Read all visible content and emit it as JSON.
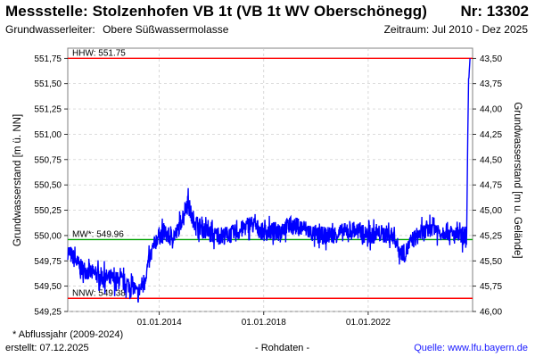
{
  "header": {
    "title": "Messstelle: Stolzenhofen VB 1t (VB 1t WV Oberschönegg)",
    "number": "Nr: 13302",
    "aquifer_label": "Grundwasserleiter:",
    "aquifer_value": "Obere Süßwassermolasse",
    "period": "Zeitraum: Jul 2010 - Dez 2025"
  },
  "footer": {
    "footnote": "* Abflussjahr (2009-2024)",
    "created": "erstellt:  07.12.2025",
    "datatype": "- Rohdaten -",
    "source": "Quelle:  www.lfu.bayern.de"
  },
  "colors": {
    "series": "#0000ff",
    "extreme": "#ff0000",
    "mean": "#00a000",
    "grid": "#c8c8c8"
  },
  "chart_data": {
    "type": "line",
    "ylabel_left": "Grundwasserstand [m ü. NN]",
    "ylabel_right": "Grundwasserstand [m u. Gelände]",
    "ylim_left": [
      549.25,
      551.85
    ],
    "yticks_left": [
      "549,25",
      "549,50",
      "549,75",
      "550,00",
      "550,25",
      "550,50",
      "550,75",
      "551,00",
      "551,25",
      "551,50",
      "551,75"
    ],
    "yticks_right": [
      "43,50",
      "43,75",
      "44,00",
      "44,25",
      "44,50",
      "44,75",
      "45,00",
      "45,25",
      "45,50",
      "45,75",
      "46,00"
    ],
    "right_axis_reference": 595.25,
    "xlim": [
      "2010-07-01",
      "2025-12-31"
    ],
    "xticks": [
      {
        "date": "2014-01-01",
        "label": "01.01.2014"
      },
      {
        "date": "2018-01-01",
        "label": "01.01.2018"
      },
      {
        "date": "2022-01-01",
        "label": "01.01.2022"
      }
    ],
    "grid": true,
    "reference_lines": [
      {
        "label": "HHW: 551.75",
        "value": 551.75,
        "color": "#ff0000"
      },
      {
        "label": "MW*: 549.96",
        "value": 549.96,
        "color": "#00a000"
      },
      {
        "label": "NNW: 549.38",
        "value": 549.38,
        "color": "#ff0000"
      }
    ],
    "series": [
      {
        "color": "#0000ff",
        "points": [
          [
            "2010-07-01",
            549.85
          ],
          [
            "2011-01-01",
            549.68
          ],
          [
            "2011-07-01",
            549.62
          ],
          [
            "2012-01-01",
            549.58
          ],
          [
            "2012-07-01",
            549.55
          ],
          [
            "2013-01-01",
            549.5
          ],
          [
            "2013-03-01",
            549.42
          ],
          [
            "2013-06-01",
            549.55
          ],
          [
            "2013-09-01",
            549.8
          ],
          [
            "2013-12-01",
            549.98
          ],
          [
            "2014-03-01",
            550.03
          ],
          [
            "2014-06-01",
            549.98
          ],
          [
            "2014-09-01",
            550.02
          ],
          [
            "2014-12-01",
            550.2
          ],
          [
            "2015-02-01",
            550.35
          ],
          [
            "2015-04-01",
            550.18
          ],
          [
            "2015-07-01",
            550.1
          ],
          [
            "2015-10-01",
            550.05
          ],
          [
            "2016-02-01",
            550.0
          ],
          [
            "2016-07-01",
            550.0
          ],
          [
            "2017-01-01",
            550.03
          ],
          [
            "2017-07-01",
            550.12
          ],
          [
            "2018-01-01",
            550.03
          ],
          [
            "2018-07-01",
            550.05
          ],
          [
            "2019-01-01",
            550.1
          ],
          [
            "2019-07-01",
            550.08
          ],
          [
            "2020-01-01",
            550.0
          ],
          [
            "2020-07-01",
            550.0
          ],
          [
            "2021-01-01",
            550.03
          ],
          [
            "2021-07-01",
            550.05
          ],
          [
            "2022-01-01",
            550.0
          ],
          [
            "2022-07-01",
            550.02
          ],
          [
            "2023-01-01",
            550.0
          ],
          [
            "2023-03-01",
            549.86
          ],
          [
            "2023-06-01",
            549.82
          ],
          [
            "2023-09-01",
            549.95
          ],
          [
            "2024-01-01",
            550.02
          ],
          [
            "2024-04-01",
            550.04
          ],
          [
            "2024-07-01",
            550.1
          ],
          [
            "2024-10-01",
            550.03
          ],
          [
            "2025-01-01",
            550.05
          ],
          [
            "2025-04-01",
            550.0
          ],
          [
            "2025-07-01",
            550.0
          ],
          [
            "2025-09-01",
            549.98
          ],
          [
            "2025-10-10",
            550.05
          ],
          [
            "2025-10-25",
            551.0
          ],
          [
            "2025-11-05",
            551.5
          ],
          [
            "2025-11-15",
            551.58
          ],
          [
            "2025-11-25",
            551.75
          ]
        ]
      }
    ]
  }
}
